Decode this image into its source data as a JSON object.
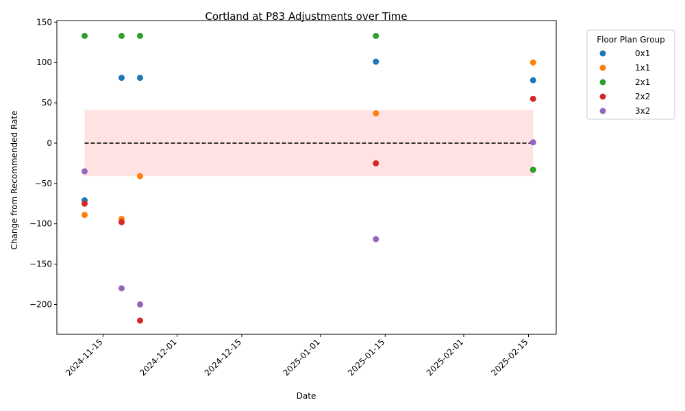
{
  "chart_data": {
    "type": "scatter",
    "title": "Cortland at P83 Adjustments over Time",
    "xlabel": "Date",
    "ylabel": "Change from Recommended Rate",
    "xlim": [
      "2024-11-05",
      "2025-02-21"
    ],
    "ylim": [
      -237,
      152
    ],
    "x_ticks": [
      "2024-11-15",
      "2024-12-01",
      "2024-12-15",
      "2025-01-01",
      "2025-01-15",
      "2025-02-01",
      "2025-02-15"
    ],
    "y_ticks": [
      150,
      100,
      50,
      0,
      -50,
      -100,
      -150,
      -200
    ],
    "y_tick_labels": [
      "150",
      "100",
      "50",
      "0",
      "−50",
      "−100",
      "−150",
      "−200"
    ],
    "reference_line": {
      "y": 0,
      "style": "dashed",
      "color": "#000000"
    },
    "band": {
      "y_low": -41,
      "y_high": 41,
      "x_start": "2024-11-11",
      "x_end": "2025-02-16",
      "color": "#ffcccc"
    },
    "legend": {
      "title": "Floor Plan Group",
      "placement": "outside-right"
    },
    "series": [
      {
        "name": "0x1",
        "color": "#1f77b4",
        "points": [
          {
            "x": "2024-11-11",
            "y": -71
          },
          {
            "x": "2024-11-19",
            "y": 81
          },
          {
            "x": "2024-11-23",
            "y": 81
          },
          {
            "x": "2025-01-13",
            "y": 101
          },
          {
            "x": "2025-02-16",
            "y": 78
          }
        ]
      },
      {
        "name": "1x1",
        "color": "#ff7f0e",
        "points": [
          {
            "x": "2024-11-11",
            "y": -89
          },
          {
            "x": "2024-11-19",
            "y": -94
          },
          {
            "x": "2024-11-23",
            "y": -41
          },
          {
            "x": "2025-01-13",
            "y": 37
          },
          {
            "x": "2025-02-16",
            "y": 100
          }
        ]
      },
      {
        "name": "2x1",
        "color": "#2ca02c",
        "points": [
          {
            "x": "2024-11-11",
            "y": 133
          },
          {
            "x": "2024-11-19",
            "y": 133
          },
          {
            "x": "2024-11-23",
            "y": 133
          },
          {
            "x": "2025-01-13",
            "y": 133
          },
          {
            "x": "2025-02-16",
            "y": -33
          }
        ]
      },
      {
        "name": "2x2",
        "color": "#d62728",
        "points": [
          {
            "x": "2024-11-11",
            "y": -75
          },
          {
            "x": "2024-11-19",
            "y": -98
          },
          {
            "x": "2024-11-23",
            "y": -220
          },
          {
            "x": "2025-01-13",
            "y": -25
          },
          {
            "x": "2025-02-16",
            "y": 55
          }
        ]
      },
      {
        "name": "3x2",
        "color": "#9467bd",
        "points": [
          {
            "x": "2024-11-11",
            "y": -35
          },
          {
            "x": "2024-11-19",
            "y": -180
          },
          {
            "x": "2024-11-23",
            "y": -200
          },
          {
            "x": "2025-01-13",
            "y": -119
          },
          {
            "x": "2025-02-16",
            "y": 1
          }
        ]
      }
    ]
  }
}
